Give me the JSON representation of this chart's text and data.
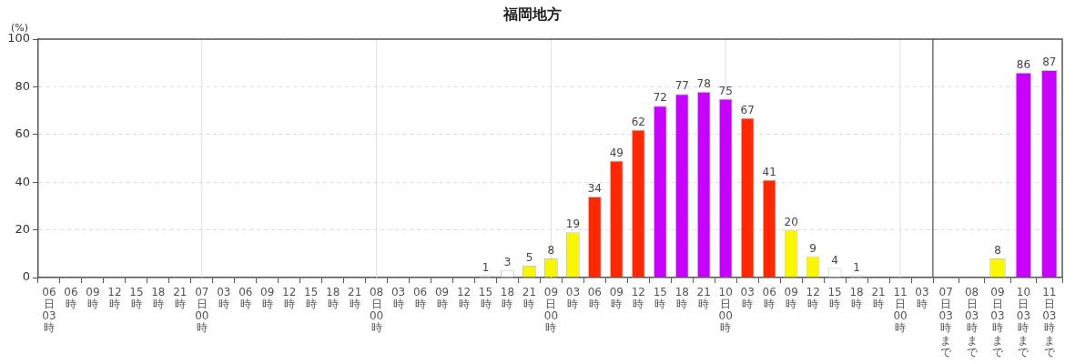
{
  "chart_data": [
    {
      "type": "bar",
      "title": "福岡地方",
      "ylabel": "(%)",
      "categories": [
        "06日03時",
        "06時",
        "09時",
        "12時",
        "15時",
        "18時",
        "21時",
        "07日00時",
        "03時",
        "06時",
        "09時",
        "12時",
        "15時",
        "18時",
        "21時",
        "08日00時",
        "03時",
        "06時",
        "09時",
        "12時",
        "15時",
        "18時",
        "21時",
        "09日00時",
        "03時",
        "06時",
        "09時",
        "12時",
        "15時",
        "18時",
        "21時",
        "10日00時",
        "03時",
        "06時",
        "09時",
        "12時",
        "15時",
        "18時",
        "21時",
        "11日00時",
        "03時"
      ],
      "values": [
        null,
        null,
        null,
        null,
        null,
        null,
        null,
        null,
        null,
        null,
        null,
        null,
        null,
        null,
        null,
        null,
        null,
        null,
        null,
        null,
        1,
        3,
        5,
        8,
        19,
        34,
        49,
        62,
        72,
        77,
        78,
        75,
        67,
        41,
        20,
        9,
        4,
        1,
        null,
        null,
        null
      ],
      "colors": [
        null,
        null,
        null,
        null,
        null,
        null,
        null,
        null,
        null,
        null,
        null,
        null,
        null,
        null,
        null,
        null,
        null,
        null,
        null,
        null,
        "#ffffff",
        "#ffffff",
        "#faf500",
        "#faf500",
        "#faf500",
        "#ff2800",
        "#ff2800",
        "#ff2800",
        "#c800ff",
        "#c800ff",
        "#c800ff",
        "#c800ff",
        "#ff2800",
        "#ff2800",
        "#faf500",
        "#faf500",
        "#ffffff",
        "#ffffff",
        null,
        null,
        null
      ],
      "ylim": [
        0,
        100
      ],
      "yticks": [
        0,
        20,
        40,
        60,
        80,
        100
      ],
      "grid": "y",
      "data_labels": true,
      "ref_lines": [
        {
          "axis": "x",
          "value": "07日00時",
          "color": "#e0e0e0"
        },
        {
          "axis": "x",
          "value": "08日00時",
          "color": "#e0e0e0"
        },
        {
          "axis": "x",
          "value": "09日00時",
          "color": "#e0e0e0"
        },
        {
          "axis": "x",
          "value": "10日00時",
          "color": "#e0e0e0"
        },
        {
          "axis": "x",
          "value": "11日00時",
          "color": "#e0e0e0"
        }
      ]
    },
    {
      "type": "bar",
      "categories": [
        "07日03時まで",
        "08日03時まで",
        "09日03時まで",
        "10日03時まで",
        "11日03時まで"
      ],
      "values": [
        null,
        null,
        8,
        86,
        87
      ],
      "colors": [
        null,
        null,
        "#faf500",
        "#c800ff",
        "#c800ff"
      ],
      "ylim": [
        0,
        100
      ],
      "yticks": [
        0,
        20,
        40,
        60,
        80,
        100
      ],
      "grid": "y",
      "data_labels": true,
      "tick_labels": "x"
    }
  ]
}
